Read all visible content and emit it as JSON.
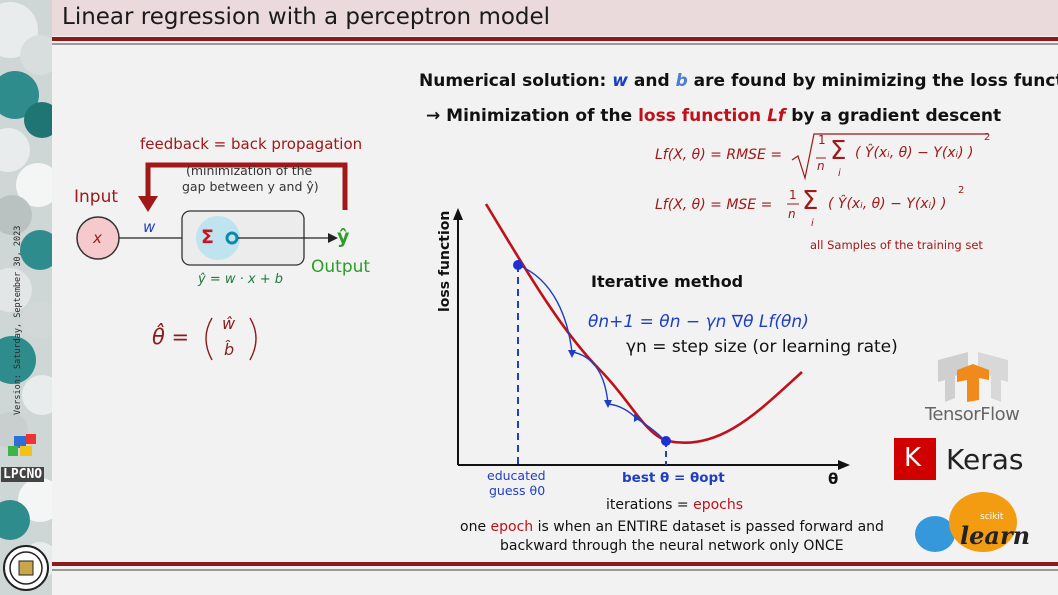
{
  "slide": {
    "title": "Linear regression with a perceptron model",
    "version_text": "Version: Saturday, September 30, 2023",
    "logo_text": "LPCNO"
  },
  "perceptron": {
    "feedback_label": "feedback = back propagation",
    "minimization_note_line1": "(minimization of the",
    "minimization_note_line2": "gap between y and ŷ)",
    "input_label": "Input",
    "input_node": "x",
    "weight_label": "w",
    "sum_symbol": "Σ",
    "output_symbol": "ŷ",
    "output_label": "Output",
    "equation": "ŷ = w · x + b",
    "theta_lhs": "θ̂ =",
    "theta_w": "ŵ",
    "theta_b": "b̂"
  },
  "header": {
    "line1_part1": "Numerical solution: ",
    "line1_w": "w",
    "line1_and": " and ",
    "line1_b": "b",
    "line1_part2": " are found by minimizing the loss function",
    "line2_arrow": "→ ",
    "line2_part1": "Minimization of the ",
    "line2_loss": "loss function ",
    "line2_lf": "Lf",
    "line2_part2": " by a gradient descent"
  },
  "formulas": {
    "rmse_lhs": "Lf(X, θ) = RMSE =",
    "mse_lhs": "Lf(X, θ) = MSE =",
    "frac_num": "1",
    "frac_den": "n",
    "sum": "Σ",
    "sum_index": "i",
    "inner": "( Ŷ(xᵢ, θ) − Y(xᵢ) )",
    "exponent": "2",
    "samples_note": "all Samples of the training set"
  },
  "chart": {
    "y_axis_label": "loss function",
    "x_axis_label": "θ",
    "method_title": "Iterative method",
    "update_rule": "θn+1 = θn − γn ∇θ Lf(θn)",
    "step_size": "γn = step size (or learning rate)",
    "guess_label_line1": "educated",
    "guess_label_line2": "guess θ0",
    "best_label": "best θ = θopt",
    "curve_color": "#c0111a",
    "path_color": "#1f3fc2"
  },
  "footer": {
    "iterations_prefix": "iterations = ",
    "iterations_epochs": "epochs",
    "epoch_line1_part1": "one ",
    "epoch_word": "epoch",
    "epoch_line1_part2": " is when an ENTIRE dataset is passed forward and",
    "epoch_line2": "backward through the neural network only ONCE"
  },
  "logos": {
    "tensorflow": "TensorFlow",
    "keras_letter": "K",
    "keras": "Keras",
    "sklearn_small": "scikit",
    "sklearn_big": "learn"
  },
  "colors": {
    "accent_red": "#c0111a",
    "accent_blue": "#1f3fc2",
    "title_bar": "#eadadb",
    "rule_red": "#8b1a1a",
    "output_green": "#2a9d2a"
  }
}
